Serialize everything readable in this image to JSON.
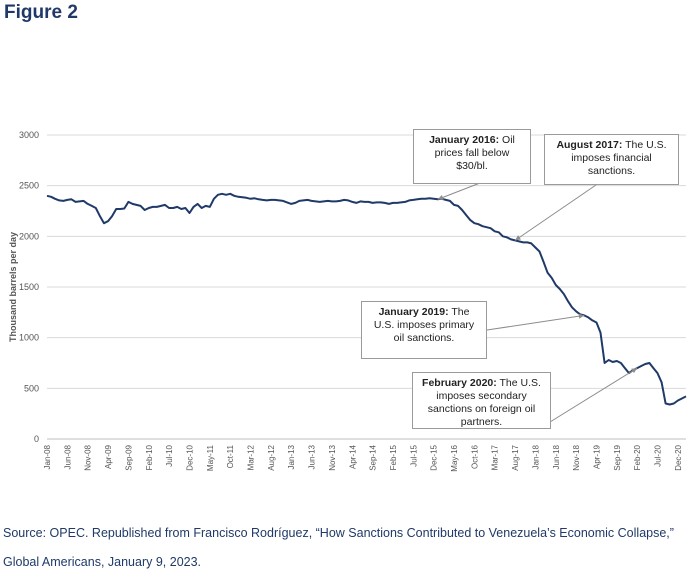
{
  "figure_title": "Figure 2",
  "source_text": "Source: OPEC. Republished from Francisco Rodríguez, “How Sanctions Contributed to Venezuela’s Economic Collapse,” Global Americans, January 9, 2023.",
  "colors": {
    "line": "#1f3a68",
    "grid": "#d9d9d9",
    "title": "#1f3a68"
  },
  "annotations": [
    {
      "bold": "January 2016:",
      "text": " Oil prices fall below $30/bl.",
      "target_month": 96
    },
    {
      "bold": "August 2017:",
      "text": " The U.S. imposes financial sanctions.",
      "target_month": 115
    },
    {
      "bold": "January 2019:",
      "text": " The U.S. imposes primary oil sanctions.",
      "target_month": 132
    },
    {
      "bold": "February 2020:",
      "text": " The U.S. imposes secondary sanctions on foreign oil partners.",
      "target_month": 145
    }
  ],
  "chart_data": {
    "type": "line",
    "title": "",
    "xlabel": "",
    "ylabel": "Thousand barrels per day",
    "ylim": [
      0,
      3000
    ],
    "yticks": [
      0,
      500,
      1000,
      1500,
      2000,
      2500,
      3000
    ],
    "grid": true,
    "legend": "none",
    "x_start": "2008-01",
    "x_end": "2020-12",
    "x_tick_labels": [
      "Jan-08",
      "Jun-08",
      "Nov-08",
      "Apr-09",
      "Sep-09",
      "Feb-10",
      "Jul-10",
      "Dec-10",
      "May-11",
      "Oct-11",
      "Mar-12",
      "Aug-12",
      "Jan-13",
      "Jun-13",
      "Nov-13",
      "Apr-14",
      "Sep-14",
      "Feb-15",
      "Jul-15",
      "Dec-15",
      "May-16",
      "Oct-16",
      "Mar-17",
      "Aug-17",
      "Jan-18",
      "Jun-18",
      "Nov-18",
      "Apr-19",
      "Sep-19",
      "Feb-20",
      "Jul-20",
      "Dec-20"
    ],
    "series": [
      {
        "values": [
          2400,
          2390,
          2370,
          2355,
          2350,
          2360,
          2365,
          2340,
          2345,
          2350,
          2320,
          2300,
          2280,
          2200,
          2130,
          2150,
          2200,
          2270,
          2270,
          2275,
          2340,
          2320,
          2310,
          2300,
          2260,
          2280,
          2290,
          2290,
          2300,
          2310,
          2280,
          2280,
          2290,
          2270,
          2280,
          2230,
          2290,
          2320,
          2280,
          2300,
          2290,
          2370,
          2410,
          2420,
          2410,
          2420,
          2400,
          2390,
          2385,
          2380,
          2370,
          2375,
          2365,
          2360,
          2355,
          2360,
          2360,
          2355,
          2350,
          2335,
          2320,
          2330,
          2350,
          2355,
          2360,
          2350,
          2345,
          2340,
          2345,
          2350,
          2345,
          2345,
          2350,
          2360,
          2355,
          2340,
          2330,
          2345,
          2340,
          2340,
          2330,
          2335,
          2335,
          2330,
          2320,
          2330,
          2330,
          2335,
          2340,
          2355,
          2360,
          2365,
          2370,
          2370,
          2375,
          2370,
          2365,
          2370,
          2360,
          2350,
          2310,
          2300,
          2260,
          2210,
          2160,
          2130,
          2120,
          2100,
          2090,
          2080,
          2050,
          2040,
          2000,
          1990,
          1970,
          1960,
          1950,
          1940,
          1940,
          1930,
          1890,
          1850,
          1750,
          1640,
          1590,
          1520,
          1480,
          1430,
          1360,
          1300,
          1260,
          1230,
          1220,
          1200,
          1170,
          1150,
          1050,
          750,
          780,
          760,
          770,
          750,
          700,
          650,
          680,
          700,
          720,
          740,
          750,
          700,
          650,
          560,
          350,
          340,
          350,
          380,
          400,
          420
        ]
      }
    ]
  }
}
